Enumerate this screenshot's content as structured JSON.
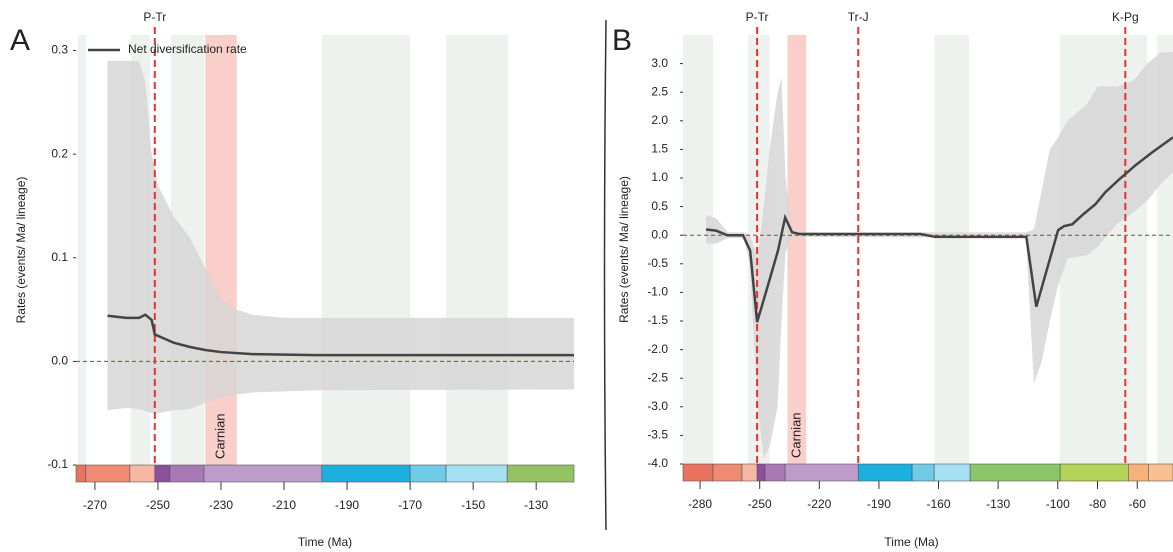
{
  "chart_data": [
    {
      "type": "line",
      "panel_label": "A",
      "xlabel": "Time (Ma)",
      "ylabel": "Rates (events/ Ma/ lineage)",
      "xlim": [
        -276,
        -118
      ],
      "ylim": [
        -0.1,
        0.315
      ],
      "xticks": [
        -270,
        -250,
        -230,
        -210,
        -190,
        -170,
        -150,
        -130
      ],
      "yticks": [
        0.3,
        0.2,
        0.1,
        {
          "value": 0,
          "label": "0.0"
        },
        -0.1
      ],
      "legend": "upper left",
      "hline": 0,
      "hline_color": "#b5332e",
      "shade_color": "#edf2ef",
      "shaded_intervals": [
        [
          -275.4,
          -272.9
        ],
        [
          -258.6,
          -252.5
        ],
        [
          -245.9,
          -235.4
        ],
        [
          -198,
          -170
        ],
        [
          -158.6,
          -139
        ]
      ],
      "highlight": {
        "label": "Carnian",
        "start": -235,
        "end": -225,
        "color": "#f9c6bf"
      },
      "events": [
        {
          "label": "P-Tr",
          "x": -251
        }
      ],
      "event_color": "#e8312f",
      "ci": {
        "x": [
          -266,
          -260,
          -256,
          -254,
          -252,
          -250,
          -245,
          -240,
          -235,
          -230,
          -225,
          -220,
          -210,
          -200,
          -118
        ],
        "upper": [
          0.29,
          0.29,
          0.29,
          0.27,
          0.2,
          0.17,
          0.14,
          0.12,
          0.09,
          0.06,
          0.05,
          0.045,
          0.042,
          0.042,
          0.042
        ],
        "lower": [
          -0.047,
          -0.045,
          -0.046,
          -0.048,
          -0.05,
          -0.05,
          -0.047,
          -0.046,
          -0.04,
          -0.035,
          -0.032,
          -0.03,
          -0.029,
          -0.028,
          -0.027
        ],
        "color": "#d6d6d6"
      },
      "series": [
        {
          "name": "Net diversification rate",
          "color": "#444444",
          "x": [
            -266,
            -260,
            -256,
            -254,
            -252,
            -251,
            -245,
            -240,
            -235,
            -230,
            -220,
            -200,
            -150,
            -118
          ],
          "values": [
            0.044,
            0.042,
            0.042,
            0.045,
            0.04,
            0.026,
            0.018,
            0.014,
            0.011,
            0.009,
            0.007,
            0.006,
            0.006,
            0.006
          ]
        }
      ],
      "timescale": {
        "boundaries": [
          -276,
          -272.9,
          -258.9,
          -251,
          -246.2,
          -235.4,
          -198,
          -170,
          -158.6,
          -139.2,
          -118
        ],
        "colors": [
          "#e9735f",
          "#ef8a73",
          "#f6b8a5",
          "#8d4f9e",
          "#a979b5",
          "#bd9ccb",
          "#1bb0e0",
          "#70cbe8",
          "#a6e0f5",
          "#93c363"
        ]
      }
    },
    {
      "type": "line",
      "panel_label": "B",
      "xlabel": "Time (Ma)",
      "ylabel": "Rates (events/ Ma/ lineage)",
      "xlim": [
        -288.6,
        -42
      ],
      "ylim": [
        -4,
        3.5
      ],
      "xticks": [
        -280,
        -250,
        -220,
        -190,
        -160,
        -130,
        -100,
        -80,
        -60
      ],
      "yticks": [
        {
          "value": 3,
          "label": "3.0"
        },
        2.5,
        {
          "value": 2,
          "label": "2.0"
        },
        1.5,
        {
          "value": 1,
          "label": "1.0"
        },
        0.5,
        {
          "value": 0,
          "label": "0.0"
        },
        -0.5,
        {
          "value": -1,
          "label": "-1.0"
        },
        -1.5,
        {
          "value": -2,
          "label": "-2.0"
        },
        -2.5,
        {
          "value": -3,
          "label": "-3.0"
        },
        -3.5,
        {
          "value": -4,
          "label": "-4.0"
        }
      ],
      "hline": 0,
      "hline_color": "#b5332e",
      "shade_color": "#edf2ef",
      "shaded_intervals": [
        [
          -288.6,
          -273.5
        ],
        [
          -256,
          -245
        ],
        [
          -162,
          -144.6
        ],
        [
          -99,
          -55
        ],
        [
          -50,
          -42
        ]
      ],
      "highlight": {
        "label": "Carnian",
        "start": -236,
        "end": -226.6,
        "color": "#f9c6bf"
      },
      "events": [
        {
          "label": "P-Tr",
          "x": -251.3
        },
        {
          "label": "Tr-J",
          "x": -200.4
        },
        {
          "label": "K-Pg",
          "x": -66
        }
      ],
      "event_color": "#e8312f",
      "ci": {
        "x": [
          -277,
          -272,
          -266,
          -258,
          -255,
          -251,
          -248,
          -245,
          -241,
          -239,
          -237,
          -234,
          -229,
          -116,
          -112,
          -108,
          -104,
          -100,
          -95,
          -85,
          -80,
          -70,
          -62,
          -55,
          -48,
          -42
        ],
        "upper": [
          0.35,
          0.3,
          0.05,
          0.05,
          0,
          -0.4,
          0.5,
          1.5,
          2.5,
          2.75,
          1,
          0.1,
          0.05,
          0.05,
          0.1,
          0.8,
          1.5,
          1.7,
          2,
          2.3,
          2.6,
          2.6,
          2.7,
          3,
          3.2,
          3.2
        ],
        "lower": [
          -0.15,
          -0.15,
          -0.05,
          -0.05,
          -0.5,
          -3,
          -3.9,
          -3.7,
          -3,
          -1.5,
          -0.3,
          -0.05,
          -0.03,
          -0.05,
          -2.6,
          -2.2,
          -1.5,
          -0.9,
          -0.4,
          -0.35,
          -0.2,
          0.2,
          0.4,
          0.6,
          0.9,
          1.1
        ],
        "color": "#d6d6d6"
      },
      "series": [
        {
          "color": "#444444",
          "x": [
            -277,
            -272,
            -266.4,
            -258.4,
            -254.8,
            -251.3,
            -245.8,
            -240.8,
            -237.2,
            -233.7,
            -229.7,
            -169,
            -161.6,
            -118.9,
            -115.8,
            -110.8,
            -99.8,
            -96.7,
            -92.7,
            -87.7,
            -81.1,
            -76.1,
            -69.6,
            -61,
            -52.4,
            -42
          ],
          "values": [
            0.1,
            0.08,
            0,
            0,
            -0.27,
            -1.52,
            -0.87,
            -0.27,
            0.31,
            0.05,
            0.02,
            0.02,
            -0.03,
            -0.03,
            -0.03,
            -1.25,
            0.09,
            0.16,
            0.19,
            0.35,
            0.54,
            0.75,
            0.96,
            1.22,
            1.45,
            1.71
          ]
        }
      ],
      "timescale": {
        "boundaries": [
          -288.6,
          -273.5,
          -258.9,
          -251.3,
          -247.3,
          -237.2,
          -200.4,
          -173.3,
          -162.2,
          -144.1,
          -98.8,
          -64.5,
          -54.4,
          -42
        ],
        "colors": [
          "#e9735f",
          "#ef8a73",
          "#f6b8a5",
          "#8d4f9e",
          "#a979b5",
          "#bd9ccb",
          "#1bb0e0",
          "#70cbe8",
          "#a6e0f5",
          "#8cc66a",
          "#b5d35a",
          "#f7b27a",
          "#fac08f"
        ]
      }
    }
  ]
}
